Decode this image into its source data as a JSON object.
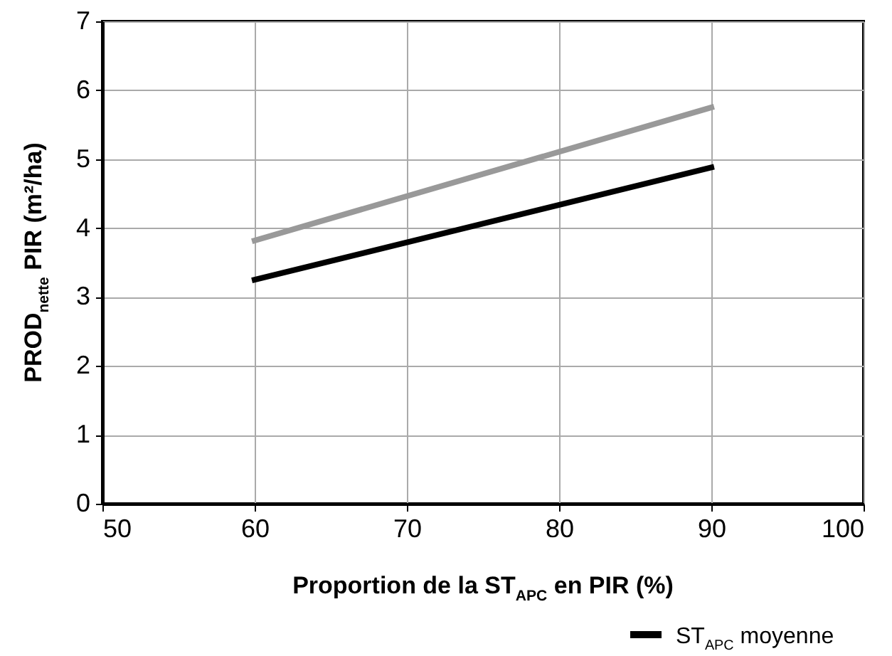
{
  "chart_data": {
    "type": "line",
    "xlabel": "Proportion de la ST$_{APC}$ en PIR (%)",
    "ylabel": "PROD$_{nette}$ PIR (m²/ha)",
    "x": [
      60,
      90
    ],
    "series": [
      {
        "color": "#999999",
        "values": [
          3.82,
          5.75
        ]
      },
      {
        "name": "ST$_{APC}$ moyenne",
        "color": "#000000",
        "values": [
          3.25,
          4.88
        ]
      }
    ],
    "xlim": [
      50,
      100
    ],
    "xticks": [
      50,
      60,
      70,
      80,
      90,
      100
    ],
    "ylim": [
      0,
      7
    ],
    "yticks": [
      0,
      1,
      2,
      3,
      4,
      5,
      6,
      7
    ],
    "grid": true,
    "legend": "bottom right",
    "line_style": "solid",
    "marker": "none"
  }
}
